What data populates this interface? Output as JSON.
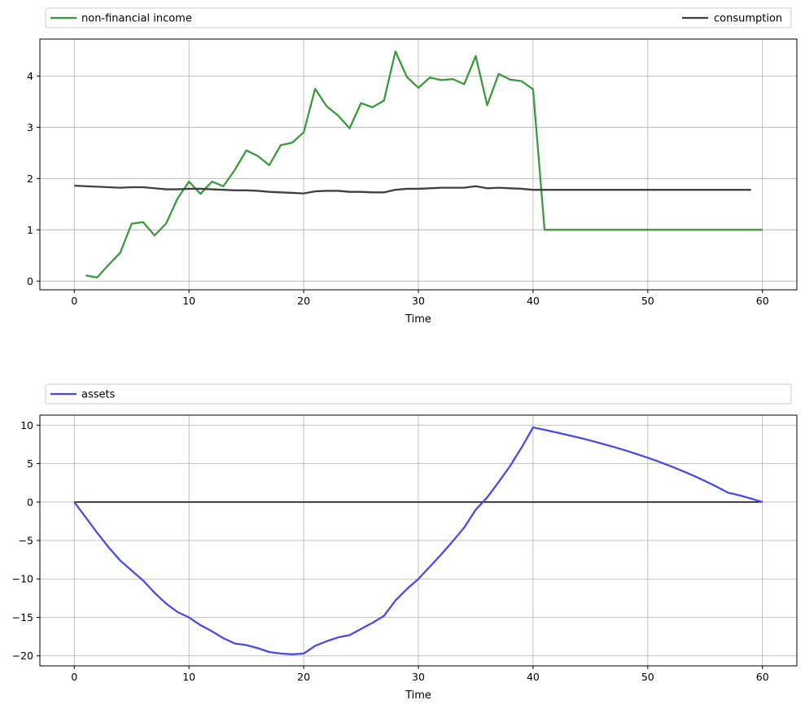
{
  "chart_data": [
    {
      "type": "line",
      "xlabel": "Time",
      "ylabel": "",
      "xlim": [
        -3,
        63
      ],
      "ylim": [
        -0.17,
        4.72
      ],
      "xticks": [
        0,
        10,
        20,
        30,
        40,
        50,
        60
      ],
      "yticks": [
        0,
        1,
        2,
        3,
        4
      ],
      "grid": true,
      "legend_placement": "top, above plot (expanded)",
      "series": [
        {
          "name": "non-financial income",
          "color": "#2ca02c",
          "x": [
            1,
            2,
            3,
            4,
            5,
            6,
            7,
            8,
            9,
            10,
            11,
            12,
            13,
            14,
            15,
            16,
            17,
            18,
            19,
            20,
            21,
            22,
            23,
            24,
            25,
            26,
            27,
            28,
            29,
            30,
            31,
            32,
            33,
            34,
            35,
            36,
            37,
            38,
            39,
            40,
            41,
            42,
            43,
            44,
            45,
            46,
            47,
            48,
            49,
            50,
            51,
            52,
            53,
            54,
            55,
            56,
            57,
            58,
            59,
            60
          ],
          "values": [
            0.11,
            0.07,
            0.32,
            0.55,
            1.12,
            1.15,
            0.89,
            1.12,
            1.61,
            1.94,
            1.7,
            1.94,
            1.85,
            2.17,
            2.55,
            2.44,
            2.26,
            2.65,
            2.7,
            2.9,
            3.75,
            3.41,
            3.23,
            2.98,
            3.47,
            3.39,
            3.52,
            4.48,
            3.98,
            3.77,
            3.97,
            3.92,
            3.94,
            3.84,
            4.39,
            3.43,
            4.04,
            3.93,
            3.9,
            3.74,
            1.0,
            1.0,
            1.0,
            1.0,
            1.0,
            1.0,
            1.0,
            1.0,
            1.0,
            1.0,
            1.0,
            1.0,
            1.0,
            1.0,
            1.0,
            1.0,
            1.0,
            1.0,
            1.0,
            1.0
          ]
        },
        {
          "name": "consumption",
          "color": "#1a1a1a",
          "x": [
            0,
            1,
            2,
            3,
            4,
            5,
            6,
            7,
            8,
            9,
            10,
            11,
            12,
            13,
            14,
            15,
            16,
            17,
            18,
            19,
            20,
            21,
            22,
            23,
            24,
            25,
            26,
            27,
            28,
            29,
            30,
            31,
            32,
            33,
            34,
            35,
            36,
            37,
            38,
            39,
            40,
            41,
            42,
            43,
            44,
            45,
            46,
            47,
            48,
            49,
            50,
            51,
            52,
            53,
            54,
            55,
            56,
            57,
            58,
            59
          ],
          "values": [
            1.86,
            1.85,
            1.84,
            1.83,
            1.82,
            1.83,
            1.83,
            1.81,
            1.79,
            1.79,
            1.8,
            1.8,
            1.79,
            1.78,
            1.77,
            1.77,
            1.76,
            1.74,
            1.73,
            1.72,
            1.71,
            1.75,
            1.76,
            1.76,
            1.74,
            1.74,
            1.73,
            1.73,
            1.78,
            1.8,
            1.8,
            1.81,
            1.82,
            1.82,
            1.82,
            1.85,
            1.81,
            1.82,
            1.81,
            1.8,
            1.78,
            1.78,
            1.78,
            1.78,
            1.78,
            1.78,
            1.78,
            1.78,
            1.78,
            1.78,
            1.78,
            1.78,
            1.78,
            1.78,
            1.78,
            1.78,
            1.78,
            1.78,
            1.78,
            1.78
          ]
        }
      ]
    },
    {
      "type": "line",
      "xlabel": "Time",
      "ylabel": "",
      "xlim": [
        -3,
        63
      ],
      "ylim": [
        -21.3,
        11.3
      ],
      "xticks": [
        0,
        10,
        20,
        30,
        40,
        50,
        60
      ],
      "yticks": [
        10,
        5,
        0,
        -5,
        -10,
        -15,
        -20
      ],
      "grid": true,
      "legend_placement": "top, above plot (expanded)",
      "zero_line": true,
      "series": [
        {
          "name": "assets",
          "color": "#0000ee",
          "x": [
            0,
            1,
            2,
            3,
            4,
            5,
            6,
            7,
            8,
            9,
            10,
            11,
            12,
            13,
            14,
            15,
            16,
            17,
            18,
            19,
            20,
            21,
            22,
            23,
            24,
            25,
            26,
            27,
            28,
            29,
            30,
            31,
            32,
            33,
            34,
            35,
            36,
            37,
            38,
            39,
            40,
            41,
            42,
            43,
            44,
            45,
            46,
            47,
            48,
            49,
            50,
            51,
            52,
            53,
            54,
            55,
            56,
            57,
            58,
            59,
            60
          ],
          "values": [
            0,
            -2.0,
            -4.0,
            -5.9,
            -7.6,
            -8.9,
            -10.2,
            -11.8,
            -13.2,
            -14.3,
            -15.0,
            -16.0,
            -16.8,
            -17.7,
            -18.4,
            -18.6,
            -19.0,
            -19.5,
            -19.7,
            -19.8,
            -19.7,
            -18.7,
            -18.1,
            -17.6,
            -17.3,
            -16.5,
            -15.7,
            -14.8,
            -12.8,
            -11.3,
            -10.0,
            -8.4,
            -6.8,
            -5.1,
            -3.3,
            -1.0,
            0.6,
            2.6,
            4.7,
            7.1,
            9.7,
            9.39,
            9.06,
            8.72,
            8.37,
            8.0,
            7.6,
            7.18,
            6.74,
            6.26,
            5.76,
            5.23,
            4.66,
            4.06,
            3.42,
            2.73,
            2.0,
            1.22,
            0.87,
            0.45,
            0.0
          ]
        }
      ]
    }
  ]
}
